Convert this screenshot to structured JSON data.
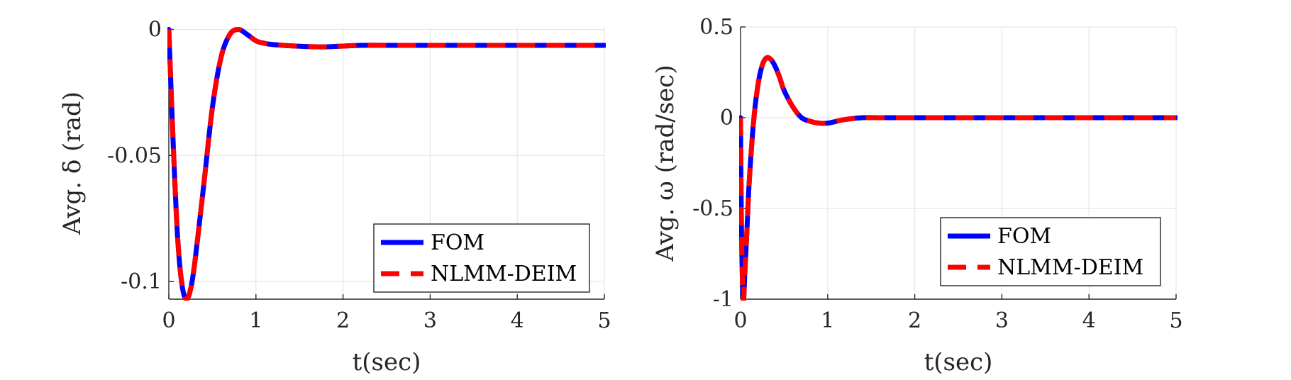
{
  "chart_data": [
    {
      "type": "line",
      "xlabel": "t(sec)",
      "ylabel": "Avg. δ (rad)",
      "xlim": [
        0,
        5
      ],
      "ylim": [
        -0.107,
        0.001
      ],
      "xticks": [
        0,
        1,
        2,
        3,
        4,
        5
      ],
      "xtick_labels": [
        "0",
        "1",
        "2",
        "3",
        "4",
        "5"
      ],
      "yticks": [
        -0.1,
        -0.05,
        0
      ],
      "ytick_labels": [
        "-0.1",
        "-0.05",
        "0"
      ],
      "grid": true,
      "legend_position": "bottom-right",
      "series": [
        {
          "name": "FOM",
          "color": "#0000ff",
          "style": "solid",
          "x": [
            0,
            0.05,
            0.1,
            0.15,
            0.2,
            0.25,
            0.3,
            0.4,
            0.5,
            0.6,
            0.7,
            0.8,
            0.9,
            1.0,
            1.1,
            1.2,
            1.4,
            1.6,
            1.8,
            2.0,
            2.2,
            2.5,
            3.0,
            3.5,
            4.0,
            4.5,
            5.0
          ],
          "y": [
            0,
            -0.045,
            -0.082,
            -0.101,
            -0.107,
            -0.103,
            -0.092,
            -0.062,
            -0.031,
            -0.011,
            -0.002,
            0.0,
            -0.002,
            -0.0045,
            -0.0055,
            -0.006,
            -0.0065,
            -0.0068,
            -0.0069,
            -0.0066,
            -0.0063,
            -0.0063,
            -0.0063,
            -0.0063,
            -0.0063,
            -0.0063,
            -0.0063
          ]
        },
        {
          "name": "NLMM-DEIM",
          "color": "#ff0000",
          "style": "dashed",
          "x": [
            0,
            0.05,
            0.1,
            0.15,
            0.2,
            0.25,
            0.3,
            0.4,
            0.5,
            0.6,
            0.7,
            0.8,
            0.9,
            1.0,
            1.1,
            1.2,
            1.4,
            1.6,
            1.8,
            2.0,
            2.2,
            2.5,
            3.0,
            3.5,
            4.0,
            4.5,
            5.0
          ],
          "y": [
            0,
            -0.045,
            -0.082,
            -0.101,
            -0.107,
            -0.103,
            -0.092,
            -0.062,
            -0.031,
            -0.011,
            -0.002,
            0.0,
            -0.002,
            -0.0045,
            -0.0055,
            -0.006,
            -0.0065,
            -0.0068,
            -0.0069,
            -0.0066,
            -0.0063,
            -0.0063,
            -0.0063,
            -0.0063,
            -0.0063,
            -0.0063,
            -0.0063
          ]
        }
      ]
    },
    {
      "type": "line",
      "xlabel": "t(sec)",
      "ylabel": "Avg. ω (rad/sec)",
      "xlim": [
        0,
        5
      ],
      "ylim": [
        -1,
        0.5
      ],
      "xticks": [
        0,
        1,
        2,
        3,
        4,
        5
      ],
      "xtick_labels": [
        "0",
        "1",
        "2",
        "3",
        "4",
        "5"
      ],
      "yticks": [
        -1,
        -0.5,
        0,
        0.5
      ],
      "ytick_labels": [
        "-1",
        "-0.5",
        "0",
        "0.5"
      ],
      "grid": true,
      "legend_position": "bottom-right",
      "series": [
        {
          "name": "FOM",
          "color": "#0000ff",
          "style": "solid",
          "x": [
            0,
            0.01,
            0.03,
            0.05,
            0.08,
            0.1,
            0.15,
            0.2,
            0.25,
            0.3,
            0.35,
            0.4,
            0.45,
            0.5,
            0.6,
            0.7,
            0.8,
            0.9,
            1.0,
            1.1,
            1.2,
            1.4,
            1.6,
            2.0,
            2.5,
            3.0,
            3.5,
            4.0,
            4.5,
            5.0
          ],
          "y": [
            0,
            -0.6,
            -1.0,
            -0.85,
            -0.55,
            -0.35,
            -0.02,
            0.18,
            0.29,
            0.33,
            0.32,
            0.28,
            0.22,
            0.15,
            0.06,
            0.0,
            -0.02,
            -0.03,
            -0.03,
            -0.02,
            -0.01,
            0.0,
            0.0,
            0.0,
            0.0,
            0.0,
            0.0,
            0.0,
            0.0,
            0.0
          ]
        },
        {
          "name": "NLMM-DEIM",
          "color": "#ff0000",
          "style": "dashed",
          "x": [
            0,
            0.01,
            0.03,
            0.05,
            0.08,
            0.1,
            0.15,
            0.2,
            0.25,
            0.3,
            0.35,
            0.4,
            0.45,
            0.5,
            0.6,
            0.7,
            0.8,
            0.9,
            1.0,
            1.1,
            1.2,
            1.4,
            1.6,
            2.0,
            2.5,
            3.0,
            3.5,
            4.0,
            4.5,
            5.0
          ],
          "y": [
            0,
            -0.6,
            -1.0,
            -0.85,
            -0.55,
            -0.35,
            -0.02,
            0.18,
            0.29,
            0.33,
            0.32,
            0.28,
            0.22,
            0.15,
            0.06,
            0.0,
            -0.02,
            -0.03,
            -0.03,
            -0.02,
            -0.01,
            0.0,
            0.0,
            0.0,
            0.0,
            0.0,
            0.0,
            0.0,
            0.0,
            0.0
          ]
        }
      ]
    }
  ]
}
